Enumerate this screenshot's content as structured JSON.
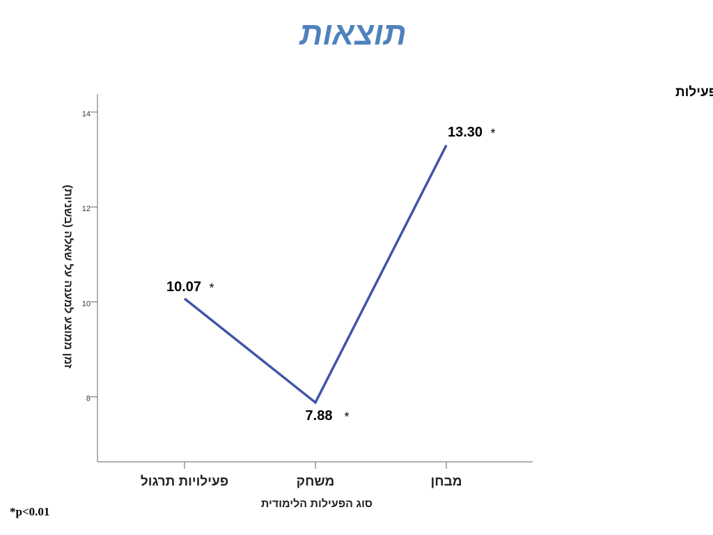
{
  "slide_title": "תוצאות",
  "footnote": "*p<0.01",
  "chart_data": {
    "type": "line",
    "title": "זמן ממוצע למענה לשאלה בכל סוג של פעילות",
    "x_label": "סוג הפעילות הלימודית",
    "y_label": "זמן ממוצע למענה על שאלה (בשניות)",
    "categories": [
      "פעילויות תרגול",
      "משחק",
      "מבחן"
    ],
    "series": [
      {
        "name": "זמן ממוצע",
        "color": "#3f55a6",
        "values": [
          10.07,
          7.88,
          13.3
        ],
        "value_labels": [
          "10.07",
          "7.88",
          "13.30"
        ],
        "significance": [
          "*",
          "*",
          "*"
        ]
      }
    ],
    "ylim": [
      6.63,
      14.38
    ],
    "yticks": [
      8,
      10,
      12,
      14
    ]
  }
}
